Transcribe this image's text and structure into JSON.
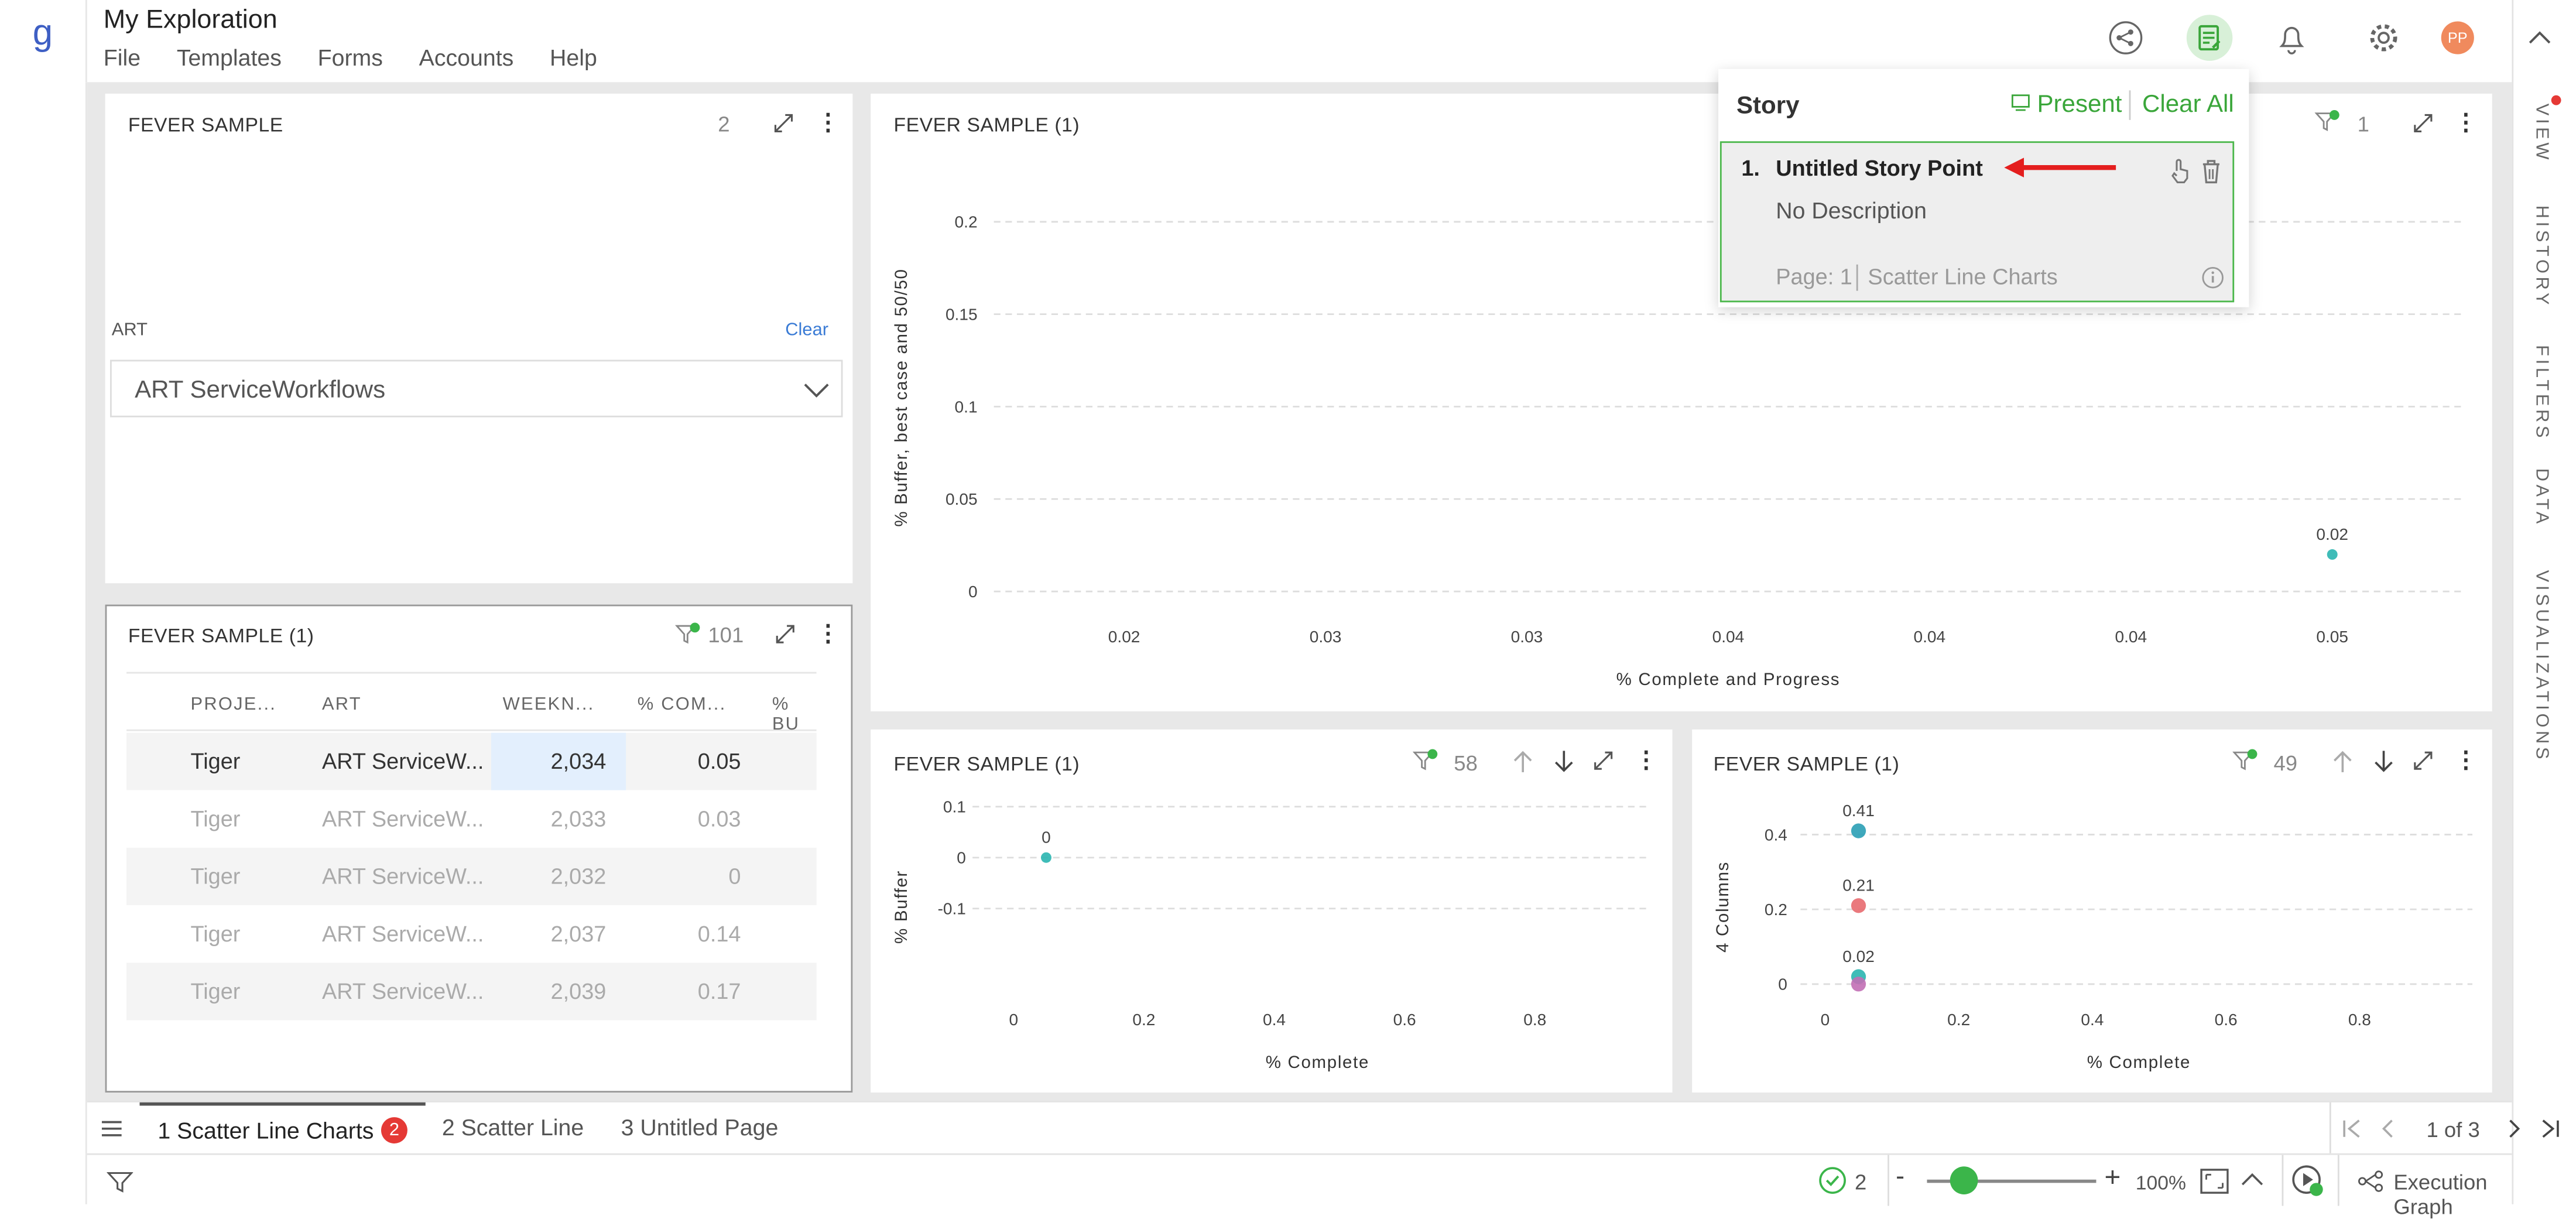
{
  "app": {
    "logo": "g",
    "title": "My Exploration",
    "menu": [
      "File",
      "Templates",
      "Forms",
      "Accounts",
      "Help"
    ]
  },
  "right_tabs": [
    "VIEW",
    "HISTORY",
    "FILTERS",
    "DATA",
    "VISUALIZATIONS"
  ],
  "user": {
    "initials": "PP"
  },
  "panel_filter": {
    "title": "FEVER SAMPLE",
    "count": "2",
    "field_label": "ART",
    "clear_label": "Clear",
    "selected": "ART ServiceWorkflows"
  },
  "panel_table": {
    "title": "FEVER SAMPLE (1)",
    "count": "101",
    "columns": [
      "PROJE...",
      "ART",
      "WEEKN...",
      "% COM...",
      "% BU"
    ],
    "rows": [
      [
        "Tiger",
        "ART ServiceW...",
        "2,034",
        "0.05"
      ],
      [
        "Tiger",
        "ART ServiceW...",
        "2,033",
        "0.03"
      ],
      [
        "Tiger",
        "ART ServiceW...",
        "2,032",
        "0"
      ],
      [
        "Tiger",
        "ART ServiceW...",
        "2,037",
        "0.14"
      ],
      [
        "Tiger",
        "ART ServiceW...",
        "2,039",
        "0.17"
      ]
    ]
  },
  "panel_main": {
    "title": "FEVER SAMPLE (1)",
    "count": "1"
  },
  "panel_small1": {
    "title": "FEVER SAMPLE (1)",
    "count": "58"
  },
  "panel_small2": {
    "title": "FEVER SAMPLE (1)",
    "count": "49"
  },
  "story": {
    "title": "Story",
    "present": "Present",
    "clear_all": "Clear All",
    "point_num": "1.",
    "point_title": "Untitled Story Point",
    "description": "No Description",
    "page": "Page: 1",
    "page_name": "Scatter Line Charts"
  },
  "page_tabs": [
    {
      "label": "1 Scatter Line Charts",
      "badge": "2"
    },
    {
      "label": "2 Scatter Line"
    },
    {
      "label": "3 Untitled Page"
    }
  ],
  "pagination": "1 of 3",
  "status": {
    "checks": "2",
    "zoom": "100%",
    "exec": "Execution Graph"
  },
  "chart_data": [
    {
      "type": "scatter",
      "x_ticks": [
        "0.02",
        "0.03",
        "0.03",
        "0.04",
        "0.04",
        "0.04",
        "0.05"
      ],
      "y_ticks": [
        "0.2",
        "0.15",
        "0.1",
        "0.05",
        "0"
      ],
      "xlabel": "% Complete and Progress",
      "ylabel": "% Buffer, best case and 50/50",
      "points": [
        {
          "x": 0.05,
          "y": 0.02,
          "label": "0.02",
          "color": "#2ab5b0"
        }
      ]
    },
    {
      "type": "scatter",
      "x_ticks": [
        "0",
        "0.2",
        "0.4",
        "0.6",
        "0.8"
      ],
      "y_ticks": [
        "0.1",
        "0",
        "-0.1"
      ],
      "xlabel": "% Complete",
      "ylabel": "% Buffer",
      "points": [
        {
          "x": 0.05,
          "y": 0,
          "label": "0",
          "color": "#2ab5b0"
        }
      ]
    },
    {
      "type": "scatter",
      "x_ticks": [
        "0",
        "0.2",
        "0.4",
        "0.6",
        "0.8"
      ],
      "y_ticks": [
        "0.4",
        "0.2",
        "0"
      ],
      "xlabel": "% Complete",
      "ylabel": "4 Columns",
      "points": [
        {
          "x": 0.05,
          "y": 0.41,
          "label": "0.41",
          "color": "#2a9fb5"
        },
        {
          "x": 0.05,
          "y": 0.21,
          "label": "0.21",
          "color": "#e86a6f"
        },
        {
          "x": 0.05,
          "y": 0.02,
          "label": "0.02",
          "color": "#2ab5b0"
        },
        {
          "x": 0.05,
          "y": 0,
          "label": "",
          "color": "#c26fb5"
        }
      ]
    }
  ]
}
